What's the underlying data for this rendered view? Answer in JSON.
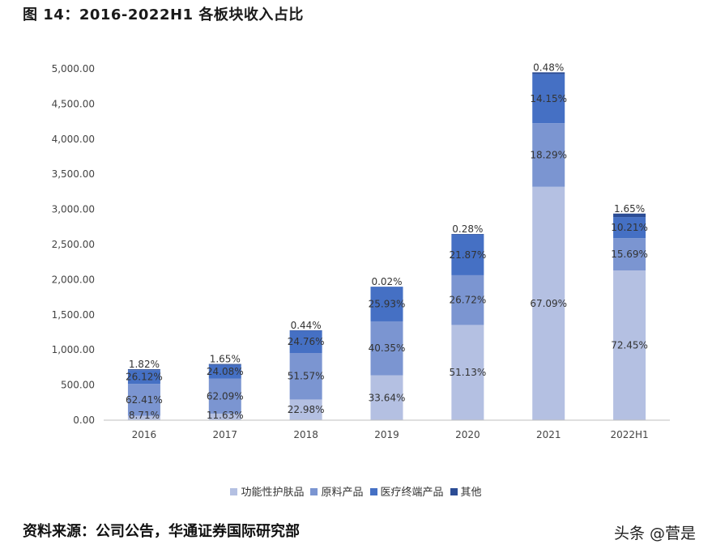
{
  "figure": {
    "title": "图 14：2016-2022H1 各板块收入占比",
    "source": "资料来源：公司公告，华通证券国际研究部",
    "watermark": "头条 @菅是"
  },
  "chart_data": {
    "type": "bar",
    "stacked": true,
    "title": "",
    "xlabel": "",
    "ylabel": "",
    "ylim": [
      0,
      5000
    ],
    "yticks": [
      "0.00",
      "500.00",
      "1,000.00",
      "1,500.00",
      "2,000.00",
      "2,500.00",
      "3,000.00",
      "3,500.00",
      "4,000.00",
      "4,500.00",
      "5,000.00"
    ],
    "grid": false,
    "legend_position": "bottom",
    "categories": [
      "2016",
      "2017",
      "2018",
      "2019",
      "2020",
      "2021",
      "2022H1"
    ],
    "totals": [
      725,
      800,
      1280,
      1900,
      2650,
      4950,
      2940
    ],
    "series": [
      {
        "name": "功能性护肤品",
        "color": "#b4c0e2",
        "values": [
          63,
          93,
          294,
          639,
          1355,
          3321,
          2130
        ],
        "labels": [
          "8.71%",
          "11.63%",
          "22.98%",
          "33.64%",
          "51.13%",
          "67.09%",
          "72.45%"
        ]
      },
      {
        "name": "原料产品",
        "color": "#7b95d1",
        "values": [
          453,
          497,
          660,
          767,
          708,
          905,
          461
        ],
        "labels": [
          "62.41%",
          "62.09%",
          "51.57%",
          "40.35%",
          "26.72%",
          "18.29%",
          "15.69%"
        ]
      },
      {
        "name": "医疗终端产品",
        "color": "#4570c4",
        "values": [
          196,
          197,
          317,
          493,
          580,
          700,
          300
        ],
        "labels": [
          "26.12%",
          "24.08%",
          "24.76%",
          "25.93%",
          "21.87%",
          "14.15%",
          "10.21%"
        ]
      },
      {
        "name": "其他",
        "color": "#2c4d95",
        "values": [
          13,
          13,
          6,
          1,
          7,
          24,
          49
        ],
        "labels": [
          "1.82%",
          "1.65%",
          "0.44%",
          "0.02%",
          "0.28%",
          "0.48%",
          "1.65%"
        ]
      }
    ]
  }
}
